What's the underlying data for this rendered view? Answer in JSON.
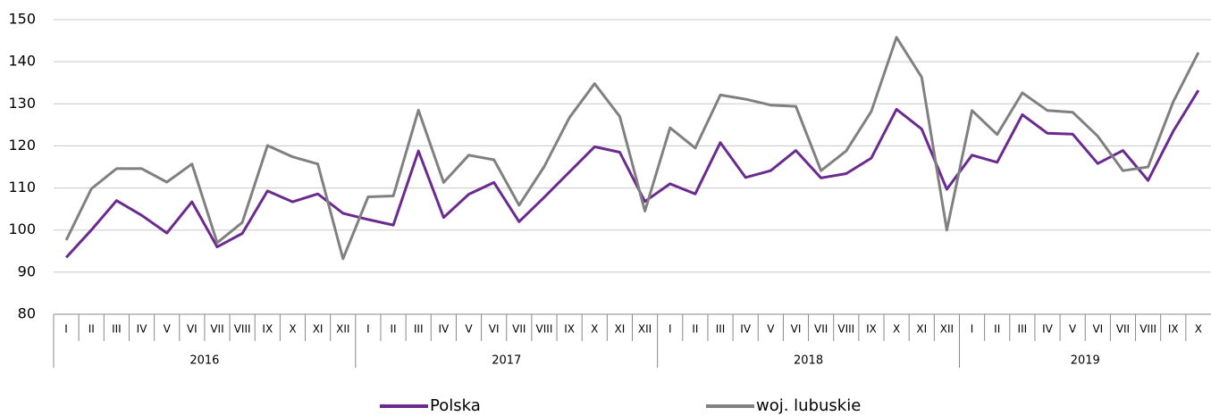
{
  "chart_data": {
    "type": "line",
    "groups": [
      {
        "label": "2016",
        "categories": [
          "I",
          "II",
          "III",
          "IV",
          "V",
          "VI",
          "VII",
          "VIII",
          "IX",
          "X",
          "XI",
          "XII"
        ]
      },
      {
        "label": "2017",
        "categories": [
          "I",
          "II",
          "III",
          "IV",
          "V",
          "VI",
          "VII",
          "VIII",
          "IX",
          "X",
          "XI",
          "XII"
        ]
      },
      {
        "label": "2018",
        "categories": [
          "I",
          "II",
          "III",
          "IV",
          "V",
          "VI",
          "VII",
          "VIII",
          "IX",
          "X",
          "XI",
          "XII"
        ]
      },
      {
        "label": "2019",
        "categories": [
          "I",
          "II",
          "III",
          "IV",
          "V",
          "VI",
          "VII",
          "VIII",
          "IX",
          "X"
        ]
      }
    ],
    "series": [
      {
        "name": "Polska",
        "color": "#6a2a8e",
        "values": [
          93.5,
          100,
          107,
          103.5,
          99.3,
          106.7,
          96,
          99.2,
          109.3,
          106.7,
          108.6,
          104,
          102.5,
          101.2,
          118.8,
          103,
          108.5,
          111.3,
          102,
          107.8,
          113.8,
          119.8,
          118.5,
          106.8,
          111,
          108.6,
          120.8,
          112.5,
          114.1,
          118.9,
          112.4,
          113.4,
          117.1,
          128.7,
          124,
          109.7,
          117.8,
          116.1,
          127.4,
          123,
          122.8,
          115.8,
          118.9,
          111.8,
          123.5,
          133.2
        ]
      },
      {
        "name": "woj. lubuskie",
        "color": "#808080",
        "values": [
          97.6,
          109.8,
          114.6,
          114.6,
          111.4,
          115.7,
          97,
          101.8,
          120.1,
          117.4,
          115.7,
          93.2,
          107.9,
          108.1,
          128.5,
          111.3,
          117.8,
          116.7,
          105.9,
          115.1,
          126.7,
          134.8,
          127,
          104.5,
          124.3,
          119.5,
          132.1,
          131.1,
          129.7,
          129.4,
          114.1,
          118.8,
          128.2,
          145.8,
          136.3,
          100,
          128.4,
          122.7,
          132.6,
          128.4,
          128,
          122.3,
          114.1,
          115,
          130.5,
          142.2
        ]
      }
    ],
    "ylim": [
      80,
      150
    ],
    "yticks": [
      80,
      90,
      100,
      110,
      120,
      130,
      140,
      150
    ],
    "grid": true,
    "legend": "bottom"
  }
}
